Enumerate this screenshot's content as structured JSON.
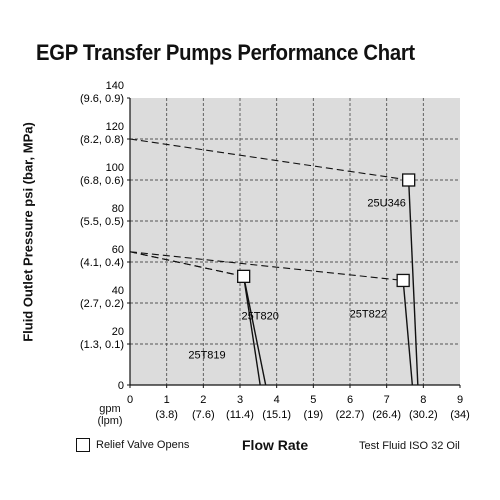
{
  "title": "EGP Transfer Pumps Performance Chart",
  "chart_data": {
    "type": "line",
    "ylabel": "Fluid Outlet Pressure psi (bar, MPa)",
    "xlabel": "Flow Rate",
    "x_unit_labels": [
      "gpm",
      "(lpm)"
    ],
    "xlim": [
      0,
      9
    ],
    "ylim": [
      0,
      140
    ],
    "x_ticks": [
      {
        "v": 0,
        "gpm": "0",
        "lpm": ""
      },
      {
        "v": 1,
        "gpm": "1",
        "lpm": "(3.8)"
      },
      {
        "v": 2,
        "gpm": "2",
        "lpm": "(7.6)"
      },
      {
        "v": 3,
        "gpm": "3",
        "lpm": "(11.4)"
      },
      {
        "v": 4,
        "gpm": "4",
        "lpm": "(15.1)"
      },
      {
        "v": 5,
        "gpm": "5",
        "lpm": "(19)"
      },
      {
        "v": 6,
        "gpm": "6",
        "lpm": "(22.7)"
      },
      {
        "v": 7,
        "gpm": "7",
        "lpm": "(26.4)"
      },
      {
        "v": 8,
        "gpm": "8",
        "lpm": "(30.2)"
      },
      {
        "v": 9,
        "gpm": "9",
        "lpm": "(34)"
      }
    ],
    "y_ticks": [
      {
        "v": 0,
        "psi": "0",
        "metric": ""
      },
      {
        "v": 20,
        "psi": "20",
        "metric": "(1.3, 0.1)"
      },
      {
        "v": 40,
        "psi": "40",
        "metric": "(2.7, 0.2)"
      },
      {
        "v": 60,
        "psi": "60",
        "metric": "(4.1, 0.4)"
      },
      {
        "v": 80,
        "psi": "80",
        "metric": "(5.5, 0.5)"
      },
      {
        "v": 100,
        "psi": "100",
        "metric": "(6.8, 0.6)"
      },
      {
        "v": 120,
        "psi": "120",
        "metric": "(8.2, 0.8)"
      },
      {
        "v": 140,
        "psi": "140",
        "metric": "(9.6, 0.9)"
      }
    ],
    "grid": true,
    "series": [
      {
        "name": "25U346",
        "points": [
          [
            0,
            120
          ],
          [
            7.6,
            100
          ],
          [
            7.85,
            0
          ]
        ],
        "relief": [
          7.6,
          100
        ],
        "label_at": [
          7.0,
          87
        ]
      },
      {
        "name": "25T822",
        "points": [
          [
            0,
            65
          ],
          [
            7.45,
            51
          ],
          [
            7.7,
            0
          ]
        ],
        "relief": [
          7.45,
          51
        ],
        "label_at": [
          6.5,
          33
        ]
      },
      {
        "name": "25T820",
        "points": [
          [
            0,
            65
          ],
          [
            3.1,
            53
          ],
          [
            3.7,
            0
          ]
        ],
        "relief": [
          3.1,
          53
        ],
        "label_at": [
          3.55,
          32
        ]
      },
      {
        "name": "25T819",
        "points": [
          [
            0,
            65
          ],
          [
            3.1,
            53
          ],
          [
            3.55,
            0
          ]
        ],
        "relief": [
          3.1,
          53
        ],
        "label_at": [
          2.1,
          13
        ]
      }
    ]
  },
  "legend": {
    "label": "Relief Valve Opens"
  },
  "note": "Test Fluid ISO 32 Oil"
}
